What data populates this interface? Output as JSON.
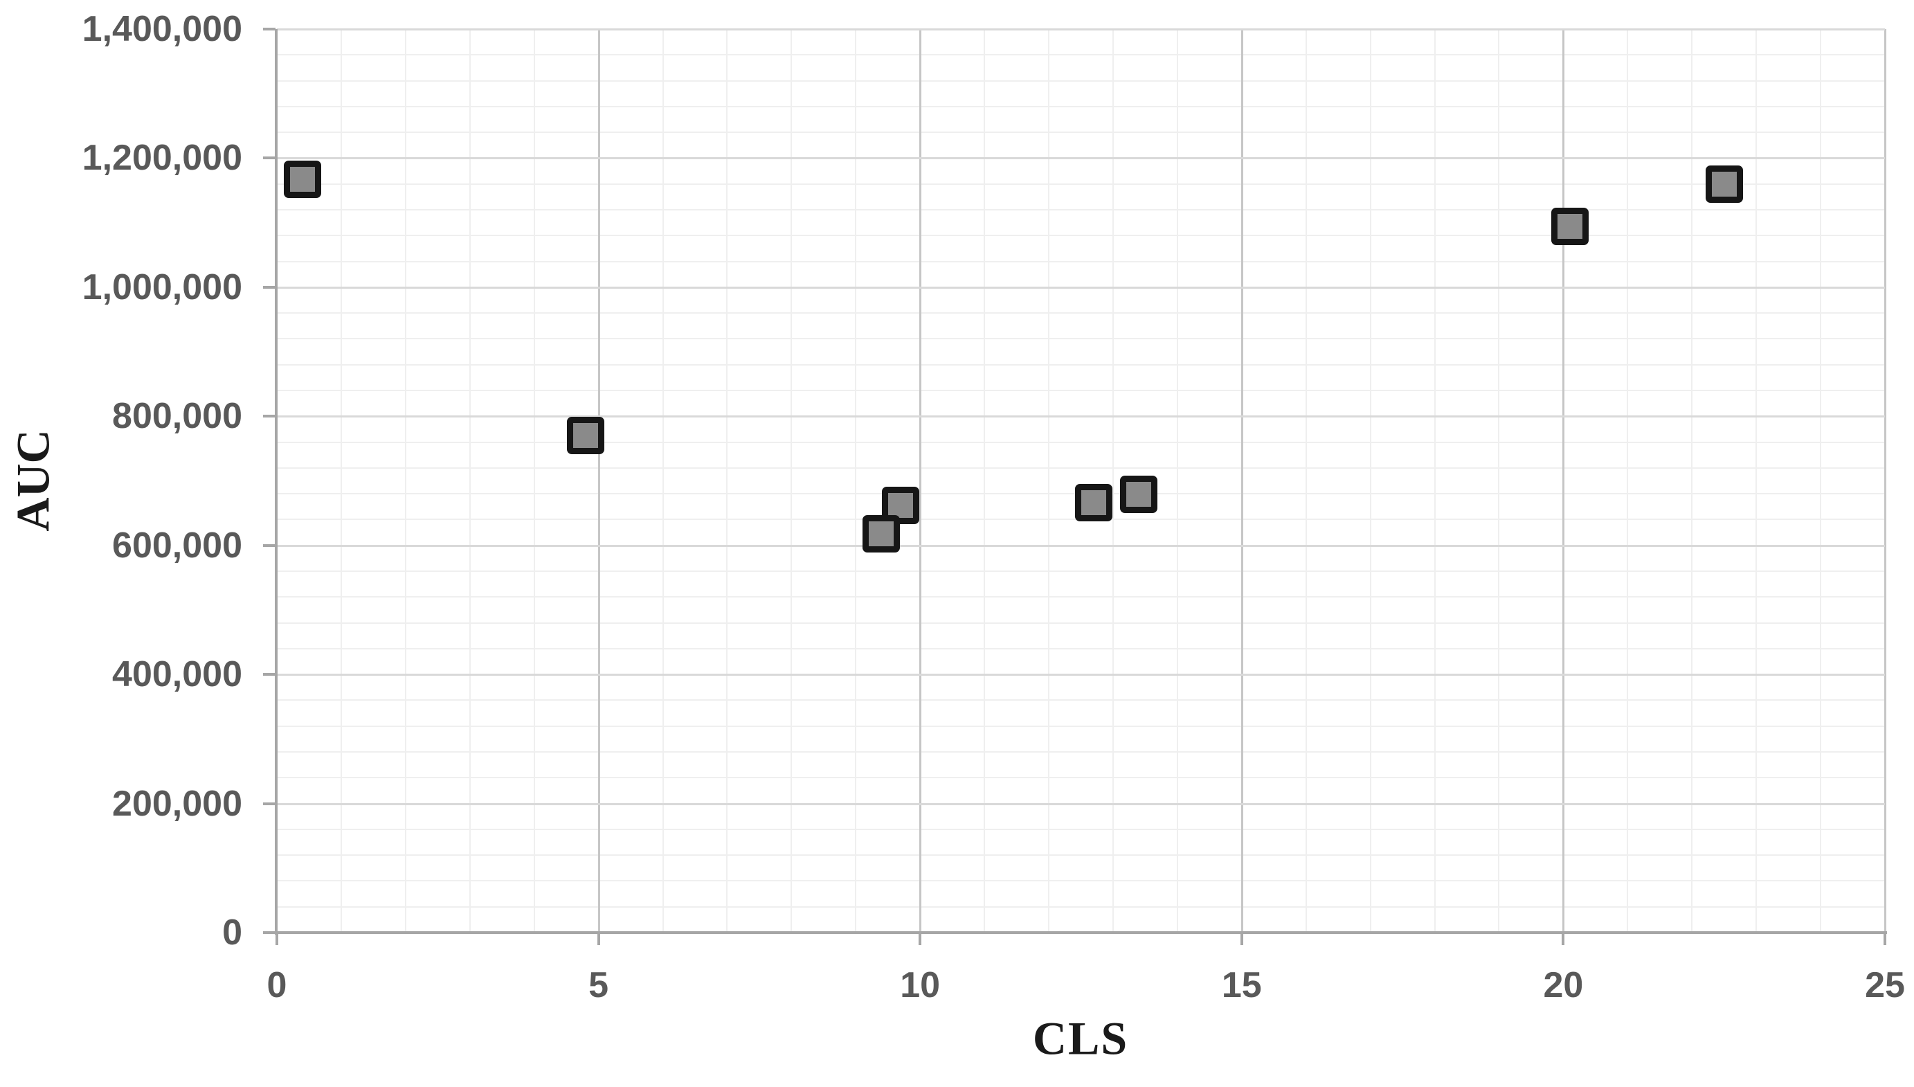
{
  "chart_data": {
    "type": "scatter",
    "title": "",
    "xlabel": "CLS",
    "ylabel": "AUC",
    "xlim": [
      0,
      25
    ],
    "ylim": [
      0,
      1400000
    ],
    "x_major_tick_step": 5,
    "x_minor_tick_step": 1,
    "y_major_tick_step": 200000,
    "y_minor_tick_step": 40000,
    "x_tick_labels": [
      "0",
      "5",
      "10",
      "15",
      "20",
      "25"
    ],
    "y_tick_labels": [
      "0",
      "200,000",
      "400,000",
      "600,000",
      "800,000",
      "1,000,000",
      "1,200,000",
      "1,400,000"
    ],
    "grid": "major and minor, both axes",
    "legend": "none",
    "marker_shape": "square",
    "points": [
      {
        "x": 0.4,
        "y": 1167000
      },
      {
        "x": 4.8,
        "y": 770000
      },
      {
        "x": 9.7,
        "y": 662000
      },
      {
        "x": 9.4,
        "y": 618000
      },
      {
        "x": 12.7,
        "y": 666000
      },
      {
        "x": 13.4,
        "y": 679000
      },
      {
        "x": 20.1,
        "y": 1094000
      },
      {
        "x": 22.5,
        "y": 1160000
      }
    ],
    "colors": {
      "marker_fill": "#8a8a8a",
      "marker_stroke": "#161616",
      "axis_line": "#a6a6a6",
      "grid_major_h": "#d9d9d9",
      "grid_major_v": "#c6c6c6",
      "grid_minor": "#efefef",
      "tick_label": "#595959",
      "axis_title": "#1a1a1a",
      "background": "#ffffff"
    }
  }
}
